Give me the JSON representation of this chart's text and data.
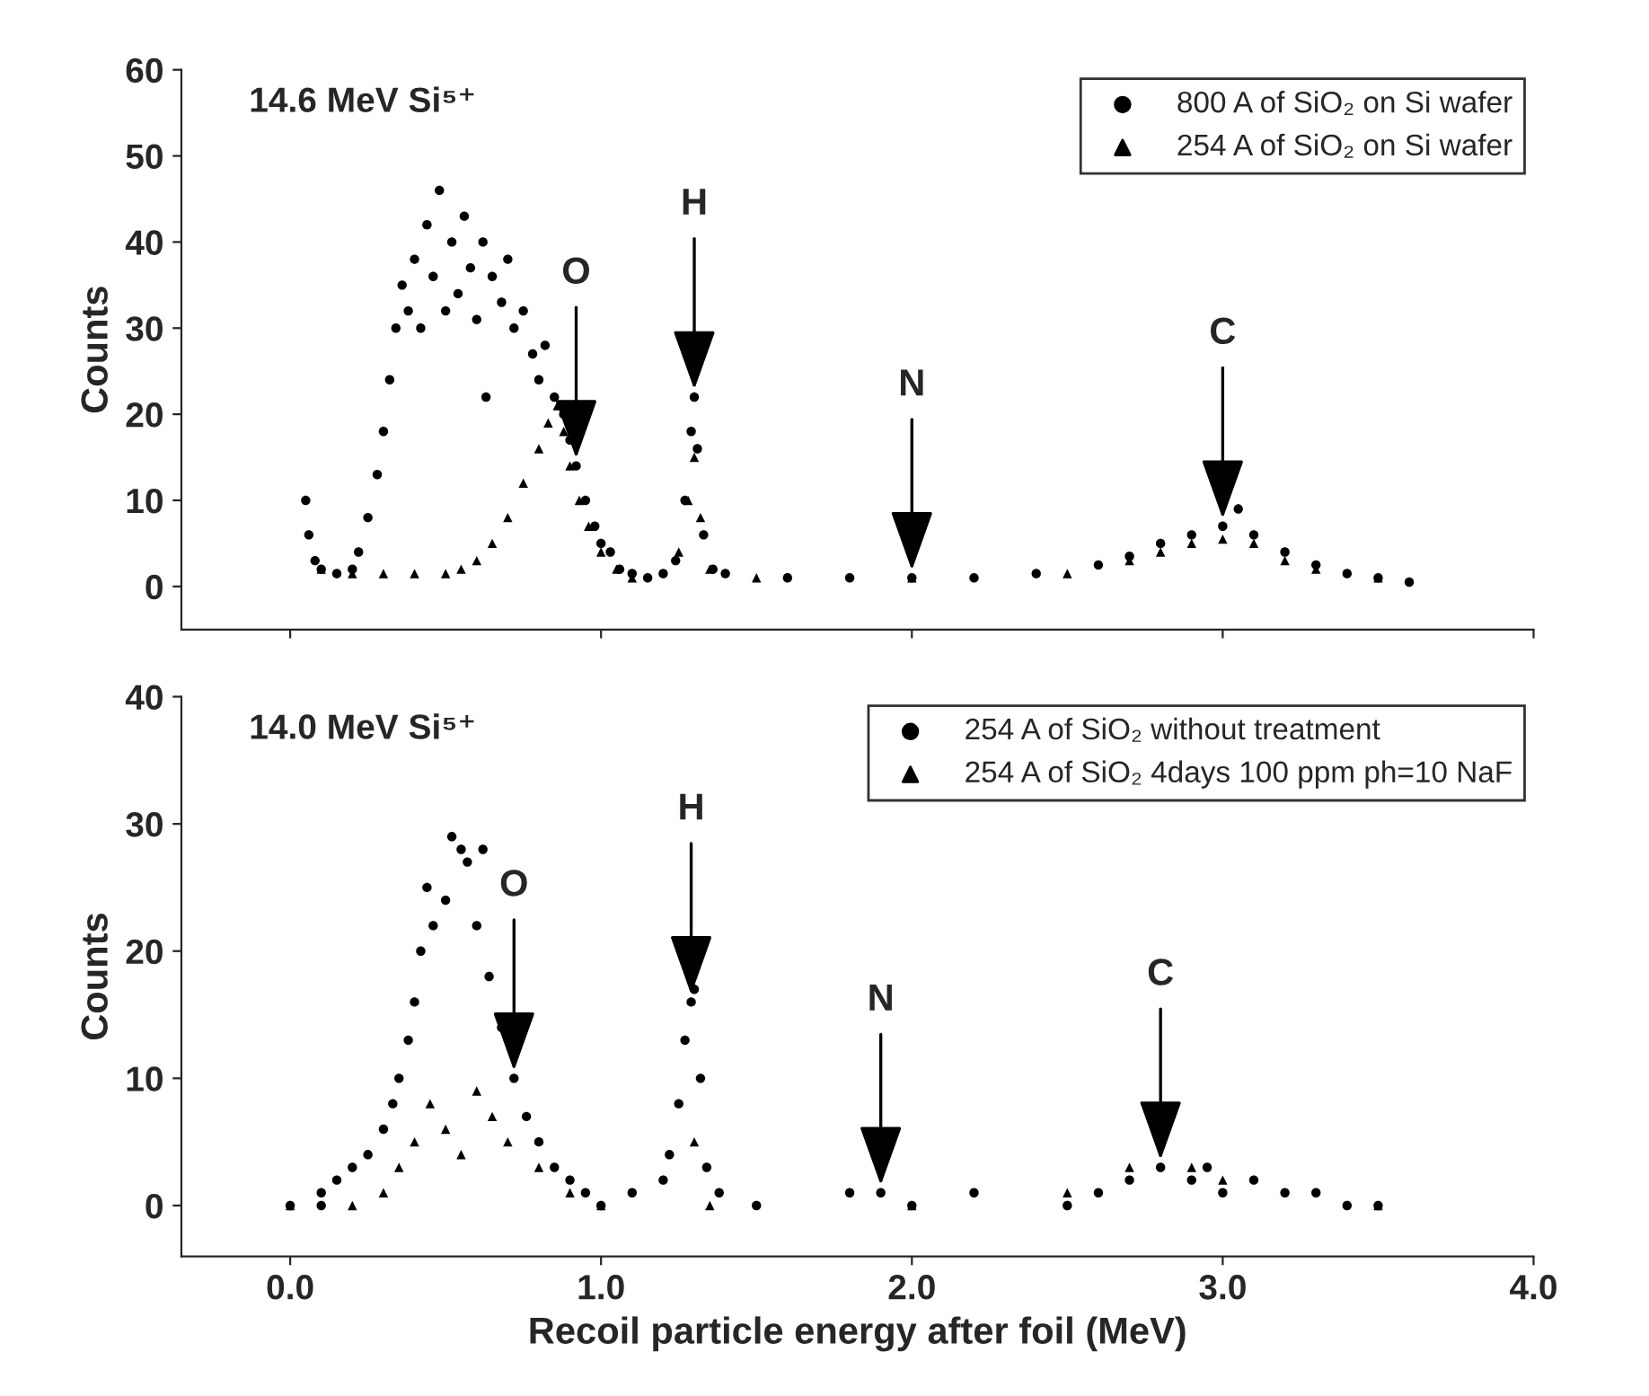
{
  "chart_data": [
    {
      "type": "scatter",
      "title": "14.6 MeV Si⁵⁺",
      "ylabel": "Counts",
      "xlim": [
        -0.35,
        4.0
      ],
      "ylim": [
        -5,
        60
      ],
      "xticks": [
        {
          "value": 0,
          "label": null
        },
        {
          "value": 1,
          "label": null
        },
        {
          "value": 2,
          "label": null
        },
        {
          "value": 3,
          "label": null
        },
        {
          "value": 4,
          "label": null
        }
      ],
      "yticks": [
        0,
        10,
        20,
        30,
        40,
        50,
        60
      ],
      "tick_labels": "y",
      "legend": "top right",
      "series": [
        {
          "name": "800 A of SiO₂ on Si wafer",
          "color": "#000000",
          "marker": "circle",
          "x": [
            0.05,
            0.06,
            0.08,
            0.1,
            0.15,
            0.2,
            0.22,
            0.25,
            0.28,
            0.3,
            0.32,
            0.34,
            0.36,
            0.38,
            0.4,
            0.42,
            0.44,
            0.46,
            0.48,
            0.5,
            0.52,
            0.54,
            0.56,
            0.58,
            0.6,
            0.62,
            0.63,
            0.65,
            0.68,
            0.7,
            0.72,
            0.75,
            0.78,
            0.8,
            0.82,
            0.85,
            0.88,
            0.9,
            0.92,
            0.95,
            0.98,
            1.0,
            1.03,
            1.06,
            1.1,
            1.15,
            1.2,
            1.24,
            1.27,
            1.29,
            1.3,
            1.31,
            1.33,
            1.36,
            1.4,
            1.6,
            1.8,
            2.0,
            2.2,
            2.4,
            2.6,
            2.7,
            2.8,
            2.9,
            3.0,
            3.05,
            3.1,
            3.2,
            3.3,
            3.4,
            3.5,
            3.6
          ],
          "values": [
            10,
            6,
            3,
            2,
            1.5,
            2,
            4,
            8,
            13,
            18,
            24,
            30,
            35,
            32,
            38,
            30,
            42,
            36,
            46,
            32,
            40,
            34,
            43,
            37,
            31,
            40,
            22,
            36,
            33,
            38,
            30,
            32,
            27,
            24,
            28,
            22,
            20,
            17,
            14,
            10,
            7,
            5,
            4,
            2,
            1.5,
            1,
            1.5,
            3,
            10,
            18,
            22,
            16,
            6,
            2,
            1.5,
            1,
            1,
            1,
            1,
            1.5,
            2.5,
            3.5,
            5,
            6,
            7,
            9,
            6,
            4,
            2.5,
            1.5,
            1,
            0.5
          ]
        },
        {
          "name": "254 A of SiO₂ on Si wafer",
          "color": "#000000",
          "marker": "triangle",
          "x": [
            0.1,
            0.2,
            0.3,
            0.4,
            0.5,
            0.55,
            0.6,
            0.65,
            0.7,
            0.75,
            0.8,
            0.83,
            0.86,
            0.88,
            0.9,
            0.93,
            0.96,
            1.0,
            1.05,
            1.1,
            1.25,
            1.28,
            1.3,
            1.32,
            1.35,
            1.5,
            2.0,
            2.5,
            2.7,
            2.8,
            2.9,
            3.0,
            3.1,
            3.2,
            3.3,
            3.5
          ],
          "values": [
            2,
            1.5,
            1.5,
            1.5,
            1.5,
            2,
            3,
            5,
            8,
            12,
            16,
            19,
            21,
            18,
            14,
            10,
            7,
            4,
            2,
            1,
            4,
            10,
            15,
            8,
            2,
            1,
            1,
            1.5,
            3,
            4,
            5,
            5.5,
            5,
            3,
            2,
            1
          ]
        }
      ],
      "annotations": [
        {
          "text": "O",
          "x": 0.92,
          "y": 14
        },
        {
          "text": "H",
          "x": 1.3,
          "y": 22
        },
        {
          "text": "N",
          "x": 2.0,
          "y": 1
        },
        {
          "text": "C",
          "x": 3.0,
          "y": 7
        }
      ]
    },
    {
      "type": "scatter",
      "title": "14.0 MeV Si⁵⁺",
      "xlabel": "Recoil particle energy after foil (MeV)",
      "ylabel": "Counts",
      "xlim": [
        -0.35,
        4.0
      ],
      "ylim": [
        -4,
        40
      ],
      "xticks": [
        {
          "value": 0,
          "label": "0.0"
        },
        {
          "value": 1,
          "label": "1.0"
        },
        {
          "value": 2,
          "label": "2.0"
        },
        {
          "value": 3,
          "label": "3.0"
        },
        {
          "value": 4,
          "label": "4.0"
        }
      ],
      "yticks": [
        0,
        10,
        20,
        30,
        40
      ],
      "legend": "top right",
      "series": [
        {
          "name": "254 A of SiO₂ without treatment",
          "color": "#000000",
          "marker": "circle",
          "x": [
            0.0,
            0.1,
            0.1,
            0.15,
            0.2,
            0.25,
            0.3,
            0.33,
            0.35,
            0.38,
            0.4,
            0.42,
            0.44,
            0.46,
            0.5,
            0.52,
            0.55,
            0.57,
            0.6,
            0.62,
            0.64,
            0.68,
            0.72,
            0.76,
            0.8,
            0.85,
            0.9,
            0.95,
            1.0,
            1.1,
            1.2,
            1.22,
            1.25,
            1.27,
            1.29,
            1.3,
            1.32,
            1.34,
            1.38,
            1.5,
            1.8,
            1.9,
            2.0,
            2.2,
            2.5,
            2.6,
            2.7,
            2.8,
            2.9,
            2.95,
            3.0,
            3.1,
            3.2,
            3.3,
            3.4,
            3.5
          ],
          "values": [
            0,
            0,
            1,
            2,
            3,
            4,
            6,
            8,
            10,
            13,
            16,
            20,
            25,
            22,
            24,
            29,
            28,
            27,
            22,
            28,
            18,
            14,
            10,
            7,
            5,
            3,
            2,
            1,
            0,
            1,
            2,
            4,
            8,
            13,
            16,
            17,
            10,
            3,
            1,
            0,
            1,
            1,
            0,
            1,
            0,
            1,
            2,
            3,
            2,
            3,
            1,
            2,
            1,
            1,
            0,
            0
          ]
        },
        {
          "name": "254 A of SiO₂ 4days 100 ppm ph=10 NaF",
          "color": "#000000",
          "marker": "triangle",
          "x": [
            0.0,
            0.2,
            0.3,
            0.35,
            0.4,
            0.45,
            0.5,
            0.55,
            0.6,
            0.65,
            0.7,
            0.8,
            0.9,
            1.0,
            1.3,
            1.35,
            2.0,
            2.5,
            2.7,
            2.9,
            3.0,
            3.5
          ],
          "values": [
            0,
            0,
            1,
            3,
            5,
            8,
            6,
            4,
            9,
            7,
            5,
            3,
            1,
            0,
            5,
            0,
            0,
            1,
            3,
            3,
            2,
            0
          ]
        }
      ],
      "annotations": [
        {
          "text": "O",
          "x": 0.72,
          "y": 10
        },
        {
          "text": "H",
          "x": 1.29,
          "y": 16
        },
        {
          "text": "N",
          "x": 1.9,
          "y": 1
        },
        {
          "text": "C",
          "x": 2.8,
          "y": 3
        }
      ]
    }
  ]
}
